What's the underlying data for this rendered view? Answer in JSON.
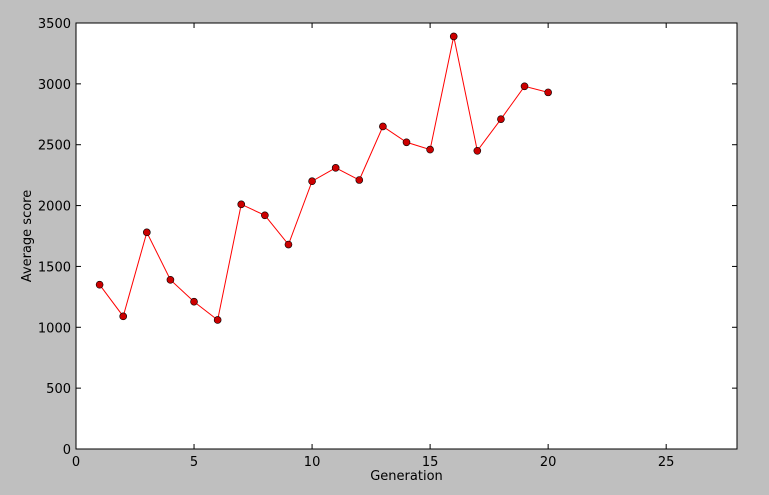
{
  "chart_data": {
    "type": "line",
    "title": "",
    "xlabel": "Generation",
    "ylabel": "Average score",
    "xlim": [
      0,
      28
    ],
    "ylim": [
      0,
      3500
    ],
    "xticks": [
      0,
      5,
      10,
      15,
      20,
      25
    ],
    "yticks": [
      0,
      500,
      1000,
      1500,
      2000,
      2500,
      3000,
      3500
    ],
    "grid": false,
    "legend": "none",
    "series": [
      {
        "color": "#ff0000",
        "marker_color": "#cc0000",
        "x": [
          1,
          2,
          3,
          4,
          5,
          6,
          7,
          8,
          9,
          10,
          11,
          12,
          13,
          14,
          15,
          16,
          17,
          18,
          19,
          20
        ],
        "values": [
          1350,
          1090,
          1780,
          1390,
          1210,
          1060,
          2010,
          1920,
          1680,
          2200,
          2310,
          2210,
          2650,
          2520,
          2460,
          3390,
          2450,
          2710,
          2980,
          2930
        ]
      }
    ],
    "colors": {
      "background": "#bfbfbf",
      "plot_area": "#ffffff",
      "axis": "#000000"
    }
  }
}
